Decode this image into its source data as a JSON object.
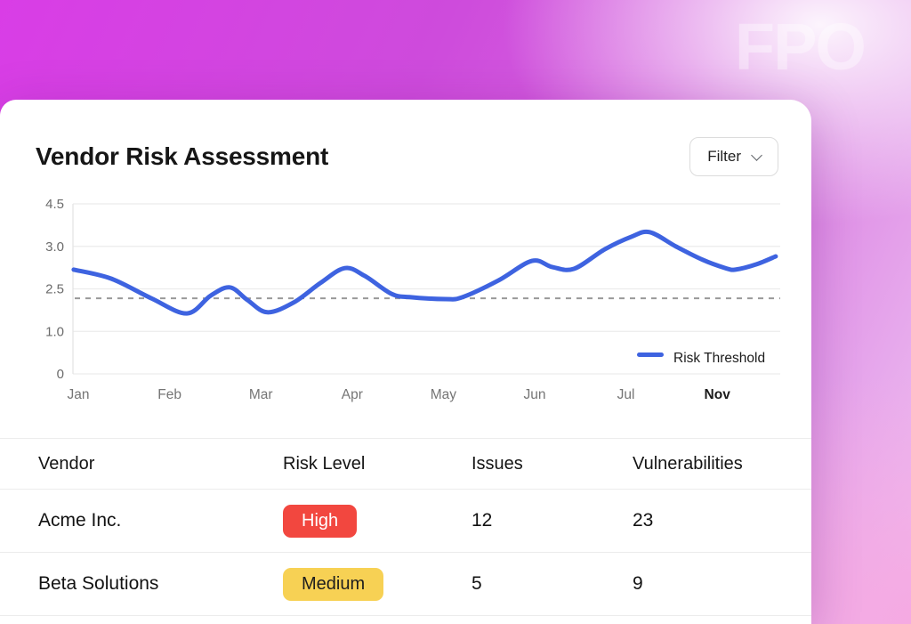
{
  "watermark": "FPO",
  "card": {
    "title": "Vendor Risk Assessment",
    "filter_button": {
      "label": "Filter",
      "icon": "chevron-down-icon"
    }
  },
  "colors": {
    "accent_line": "#3e63e0",
    "threshold_dash": "#999999",
    "gridline": "#ececec",
    "axis_line": "#e3e3e3",
    "high_bg": "#f2473f",
    "high_text": "#ffffff",
    "medium_bg": "#f7d154",
    "medium_text": "#1d1d1d"
  },
  "chart_data": {
    "type": "line",
    "title": "Vendor Risk Assessment",
    "xlabel": "",
    "ylabel": "",
    "grid": true,
    "ylim": [
      0,
      4.5
    ],
    "y_tick_labels": [
      "4.5",
      "3.0",
      "2.5",
      "1.0",
      "0"
    ],
    "x_tick_labels": [
      "Jan",
      "Feb",
      "Mar",
      "Apr",
      "May",
      "Jun",
      "Jul",
      "Nov"
    ],
    "threshold_value": 2.0,
    "threshold_style": "dashed",
    "legend": {
      "label": "Risk Threshold",
      "position": "bottom-right"
    },
    "series": [
      {
        "name": "Risk Threshold",
        "x": [
          -0.05,
          0.36,
          0.8,
          1.19,
          1.45,
          1.66,
          1.85,
          2.07,
          2.36,
          2.65,
          2.92,
          3.14,
          3.43,
          3.63,
          4.02,
          4.21,
          4.6,
          4.97,
          5.19,
          5.43,
          5.77,
          6.06,
          6.26,
          6.55,
          6.84,
          7.09,
          7.2,
          7.43,
          7.64
        ],
        "values": [
          2.76,
          2.52,
          2.0,
          1.6,
          2.07,
          2.29,
          1.96,
          1.63,
          1.89,
          2.4,
          2.8,
          2.59,
          2.12,
          2.03,
          1.98,
          2.03,
          2.47,
          2.99,
          2.83,
          2.78,
          3.3,
          3.63,
          3.75,
          3.37,
          3.02,
          2.8,
          2.76,
          2.9,
          3.11
        ]
      }
    ]
  },
  "table": {
    "columns": [
      "Vendor",
      "Risk Level",
      "Issues",
      "Vulnerabilities"
    ],
    "rows": [
      {
        "vendor": "Acme Inc.",
        "risk_level": "High",
        "risk_class": "high",
        "issues": 12,
        "vulnerabilities": 23
      },
      {
        "vendor": "Beta Solutions",
        "risk_level": "Medium",
        "risk_class": "medium",
        "issues": 5,
        "vulnerabilities": 9
      }
    ]
  }
}
